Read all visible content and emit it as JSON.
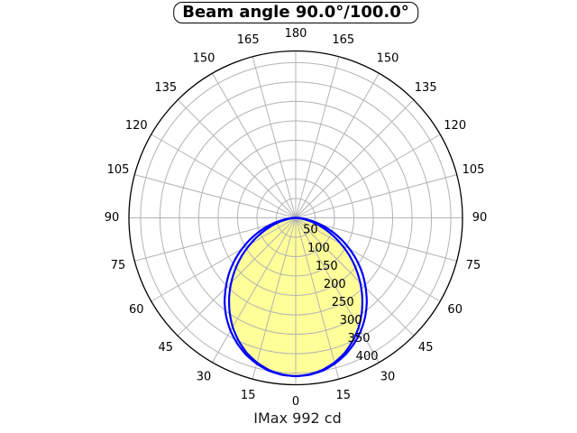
{
  "page": {
    "background": "#ffffff"
  },
  "header": {
    "title": "Beam angle 90.0°/100.0°"
  },
  "footer": {
    "imax_label": "IMax 992 cd"
  },
  "chart_data": {
    "type": "line",
    "subtype": "polar_photometric_curve",
    "title": "Beam angle 90.0°/100.0°",
    "footnote": "IMax 992 cd",
    "imax_cd": 992,
    "beam_angles_deg": [
      90.0,
      100.0
    ],
    "angular_axis": {
      "tick_step_deg": 15,
      "zero_position": "bottom",
      "labels_mirrored_both_sides": true,
      "tick_labels": [
        "0",
        "15",
        "30",
        "45",
        "60",
        "75",
        "90",
        "105",
        "120",
        "135",
        "150",
        "165",
        "180"
      ]
    },
    "radial_axis": {
      "ticks": [
        50,
        100,
        150,
        200,
        250,
        300,
        350,
        400
      ],
      "max": 430
    },
    "grid": {
      "color": "#b3b3b3",
      "axis_color": "#000000",
      "grid_on": true
    },
    "series": [
      {
        "name": "beam-curve-wide",
        "beam_angle_deg": 100.0,
        "color": "#0000ff",
        "fill": "none",
        "symmetric": true,
        "angles_deg": [
          0,
          5,
          10,
          15,
          20,
          25,
          30,
          35,
          40,
          45,
          50,
          55,
          60,
          65,
          70,
          75,
          80,
          85,
          90
        ],
        "values": [
          408,
          406,
          400,
          389,
          375,
          357,
          336,
          312,
          285,
          255,
          225,
          193,
          160,
          128,
          96,
          66,
          38,
          15,
          0
        ]
      },
      {
        "name": "beam-curve-narrow",
        "beam_angle_deg": 90.0,
        "color": "#0000ff",
        "fill": "#ffff99",
        "symmetric": true,
        "angles_deg": [
          0,
          5,
          10,
          15,
          20,
          25,
          30,
          35,
          40,
          45,
          50,
          55,
          60,
          65,
          70,
          75,
          80,
          85,
          90
        ],
        "values": [
          408,
          405,
          398,
          386,
          370,
          349,
          325,
          297,
          267,
          235,
          202,
          169,
          135,
          104,
          74,
          48,
          25,
          8,
          0
        ]
      }
    ]
  }
}
